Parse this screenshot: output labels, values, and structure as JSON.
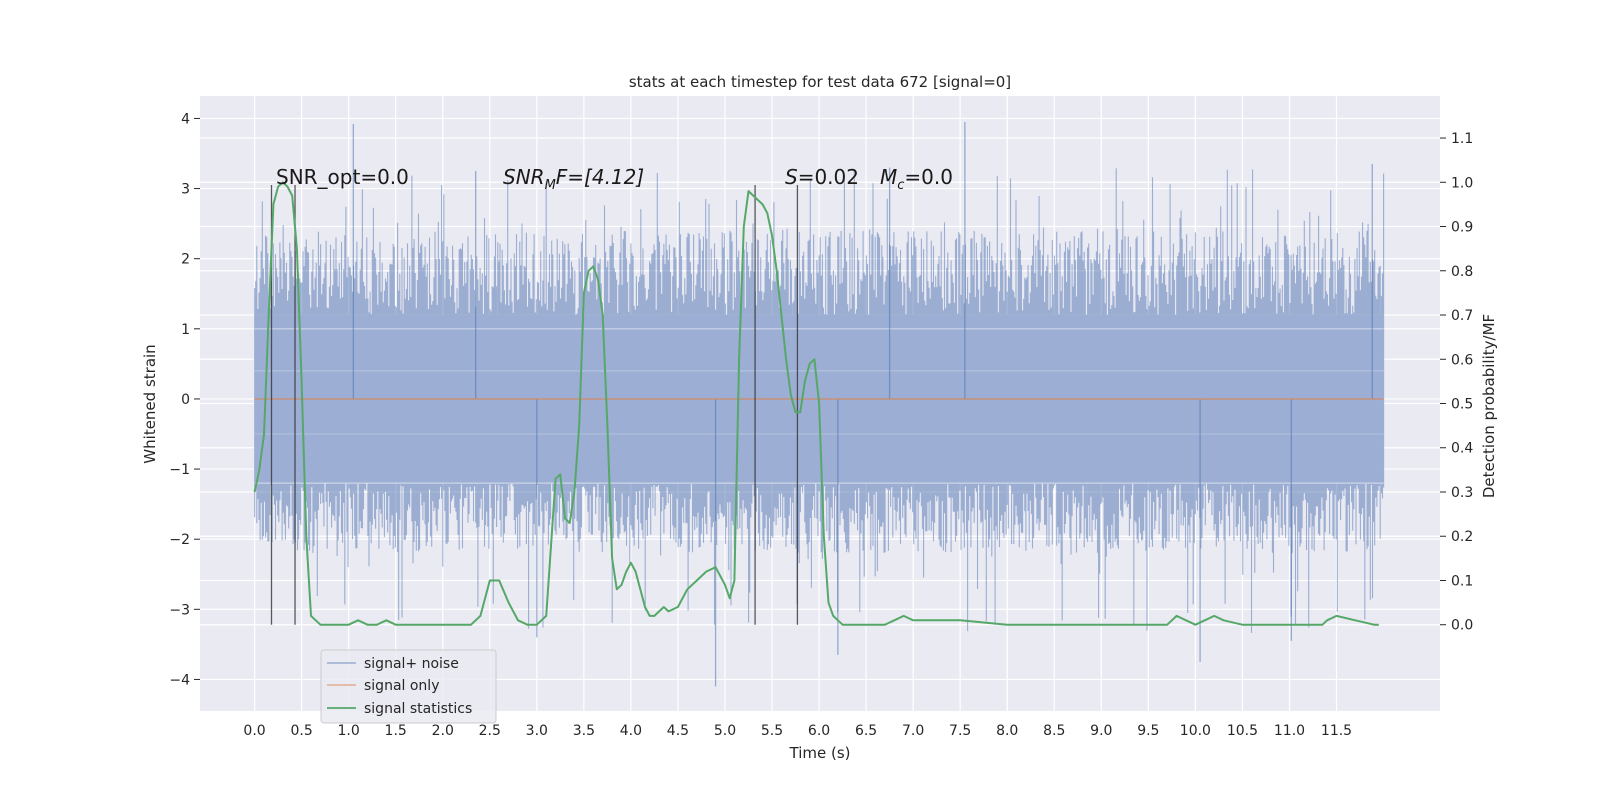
{
  "chart_data": {
    "type": "line",
    "title": "stats at each timestep for test data 672 [signal=0]",
    "xlabel": "Time (s)",
    "ylabel": "Whitened strain",
    "y2label": "Detection probability/MF",
    "xlim": [
      -0.58,
      12.6
    ],
    "ylim": [
      -4.45,
      4.32
    ],
    "y2lim": [
      -0.195,
      1.195
    ],
    "grid": true,
    "legend_position": "lower-left",
    "x_ticks": [
      "0.0",
      "0.5",
      "1.0",
      "1.5",
      "2.0",
      "2.5",
      "3.0",
      "3.5",
      "4.0",
      "4.5",
      "5.0",
      "5.5",
      "6.0",
      "6.5",
      "7.0",
      "7.5",
      "8.0",
      "8.5",
      "9.0",
      "9.5",
      "10.0",
      "10.5",
      "11.0",
      "11.5"
    ],
    "y_ticks": [
      "4",
      "3",
      "2",
      "1",
      "0",
      "−1",
      "−2",
      "−3",
      "−4"
    ],
    "y2_ticks": [
      "1.1",
      "1.0",
      "0.9",
      "0.8",
      "0.7",
      "0.6",
      "0.5",
      "0.4",
      "0.3",
      "0.2",
      "0.1",
      "0.0"
    ],
    "annotations": {
      "snr_opt": "SNR_opt=0.0",
      "snr_mf_main": "SNR",
      "snr_mf_sub": "M",
      "snr_mf_rest": "F=[4.12]",
      "s_main": "S",
      "s_rest": "=0.02",
      "mc_main": "M",
      "mc_sub": "c",
      "mc_rest": "=0.0"
    },
    "vertical_markers": [
      {
        "x": 0.18,
        "y_top": 3.05
      },
      {
        "x": 0.43,
        "y_top": 3.05
      },
      {
        "x": 5.32,
        "y_top": 3.05
      },
      {
        "x": 5.77,
        "y_top": 3.05
      }
    ],
    "noise_envelope": {
      "x_start": 0.0,
      "x_end": 12.0,
      "typical_upper": 2.4,
      "typical_lower": -2.2,
      "peak_upper": 3.9,
      "peak_lower": -4.1
    },
    "series": [
      {
        "name": "signal+ noise",
        "color": "#4c72b0",
        "kind": "noise"
      },
      {
        "name": "signal only",
        "color": "#dd8452",
        "x": [
          0.0,
          12.0
        ],
        "y": [
          0.0,
          0.0
        ]
      },
      {
        "name": "signal statistics",
        "color": "#55a868",
        "axis": "right",
        "x": [
          0.0,
          0.05,
          0.1,
          0.15,
          0.2,
          0.25,
          0.3,
          0.35,
          0.4,
          0.45,
          0.5,
          0.55,
          0.6,
          0.65,
          0.7,
          0.8,
          0.9,
          1.0,
          1.1,
          1.2,
          1.3,
          1.4,
          1.5,
          1.6,
          1.7,
          1.8,
          1.9,
          2.0,
          2.1,
          2.2,
          2.3,
          2.4,
          2.5,
          2.6,
          2.7,
          2.8,
          2.9,
          3.0,
          3.1,
          3.2,
          3.25,
          3.3,
          3.35,
          3.4,
          3.45,
          3.5,
          3.55,
          3.6,
          3.65,
          3.7,
          3.75,
          3.8,
          3.85,
          3.9,
          3.95,
          4.0,
          4.05,
          4.1,
          4.15,
          4.2,
          4.25,
          4.3,
          4.35,
          4.4,
          4.5,
          4.6,
          4.7,
          4.8,
          4.9,
          5.0,
          5.05,
          5.1,
          5.15,
          5.2,
          5.25,
          5.3,
          5.35,
          5.4,
          5.45,
          5.5,
          5.55,
          5.6,
          5.65,
          5.7,
          5.75,
          5.8,
          5.85,
          5.9,
          5.95,
          6.0,
          6.05,
          6.1,
          6.15,
          6.2,
          6.25,
          6.3,
          6.35,
          6.4,
          6.45,
          6.5,
          6.55,
          6.6,
          6.65,
          6.7,
          6.8,
          6.9,
          7.0,
          7.5,
          8.0,
          8.5,
          9.0,
          9.5,
          9.6,
          9.7,
          9.8,
          9.9,
          10.0,
          10.1,
          10.2,
          10.3,
          10.5,
          10.7,
          10.9,
          11.1,
          11.3,
          11.35,
          11.4,
          11.5,
          11.7,
          11.9,
          11.95
        ],
        "y": [
          0.3,
          0.35,
          0.43,
          0.7,
          0.95,
          0.99,
          1.0,
          0.99,
          0.97,
          0.85,
          0.55,
          0.2,
          0.02,
          0.01,
          0.0,
          0.0,
          0.0,
          0.0,
          0.01,
          0.0,
          0.0,
          0.01,
          0.0,
          0.0,
          0.0,
          0.0,
          0.0,
          0.0,
          0.0,
          0.0,
          0.0,
          0.02,
          0.1,
          0.1,
          0.05,
          0.01,
          0.0,
          0.0,
          0.02,
          0.33,
          0.34,
          0.24,
          0.23,
          0.3,
          0.45,
          0.75,
          0.8,
          0.81,
          0.78,
          0.7,
          0.45,
          0.15,
          0.08,
          0.09,
          0.12,
          0.14,
          0.12,
          0.08,
          0.04,
          0.02,
          0.02,
          0.03,
          0.04,
          0.03,
          0.04,
          0.08,
          0.1,
          0.12,
          0.13,
          0.09,
          0.06,
          0.1,
          0.6,
          0.9,
          0.98,
          0.97,
          0.96,
          0.95,
          0.93,
          0.88,
          0.8,
          0.7,
          0.6,
          0.52,
          0.48,
          0.48,
          0.55,
          0.59,
          0.6,
          0.5,
          0.2,
          0.05,
          0.02,
          0.01,
          0.0,
          0.0,
          0.0,
          0.0,
          0.0,
          0.0,
          0.0,
          0.0,
          0.0,
          0.0,
          0.01,
          0.02,
          0.01,
          0.01,
          0.0,
          0.0,
          0.0,
          0.0,
          0.0,
          0.0,
          0.02,
          0.01,
          0.0,
          0.01,
          0.02,
          0.01,
          0.0,
          0.0,
          0.0,
          0.0,
          0.0,
          0.0,
          0.01,
          0.02,
          0.01,
          0.0,
          0.0
        ]
      }
    ]
  }
}
